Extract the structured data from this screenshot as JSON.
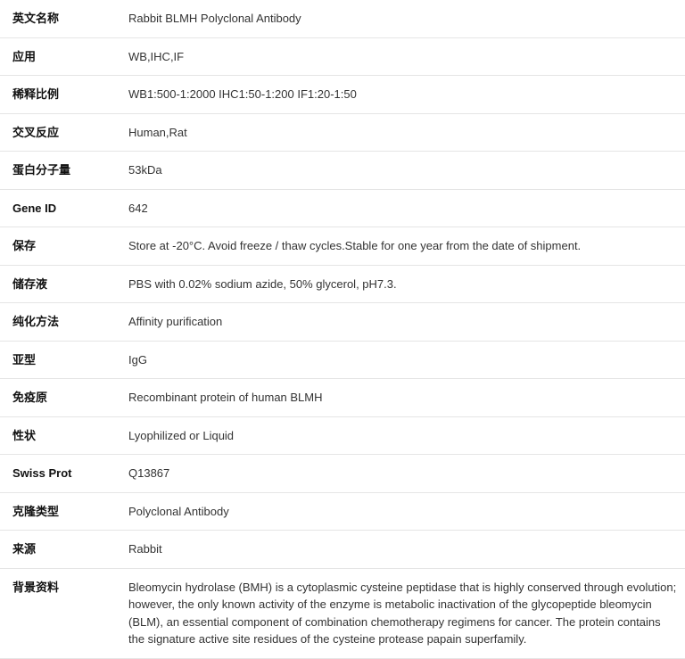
{
  "rows": [
    {
      "label": "英文名称",
      "value": "Rabbit BLMH Polyclonal Antibody"
    },
    {
      "label": "应用",
      "value": "WB,IHC,IF"
    },
    {
      "label": "稀释比例",
      "value": "WB1:500-1:2000 IHC1:50-1:200 IF1:20-1:50"
    },
    {
      "label": "交叉反应",
      "value": "Human,Rat"
    },
    {
      "label": "蛋白分子量",
      "value": "53kDa"
    },
    {
      "label": "Gene ID",
      "value": "642"
    },
    {
      "label": "保存",
      "value": "Store at -20°C. Avoid freeze / thaw cycles.Stable for one year from the date of shipment."
    },
    {
      "label": "储存液",
      "value": "PBS with 0.02% sodium azide, 50% glycerol, pH7.3."
    },
    {
      "label": "纯化方法",
      "value": "Affinity purification"
    },
    {
      "label": "亚型",
      "value": "IgG"
    },
    {
      "label": "免疫原",
      "value": "Recombinant protein of human BLMH"
    },
    {
      "label": "性状",
      "value": "Lyophilized or Liquid"
    },
    {
      "label": "Swiss Prot",
      "value": "Q13867"
    },
    {
      "label": "克隆类型",
      "value": "Polyclonal Antibody"
    },
    {
      "label": "来源",
      "value": "Rabbit"
    },
    {
      "label": "背景资料",
      "value": "Bleomycin hydrolase (BMH) is a cytoplasmic cysteine peptidase that is highly conserved through evolution; however, the only known activity of the enzyme is metabolic inactivation of the glycopeptide bleomycin (BLM), an essential component of combination chemotherapy regimens for cancer. The protein contains the signature active site residues of the cysteine protease papain superfamily."
    }
  ]
}
